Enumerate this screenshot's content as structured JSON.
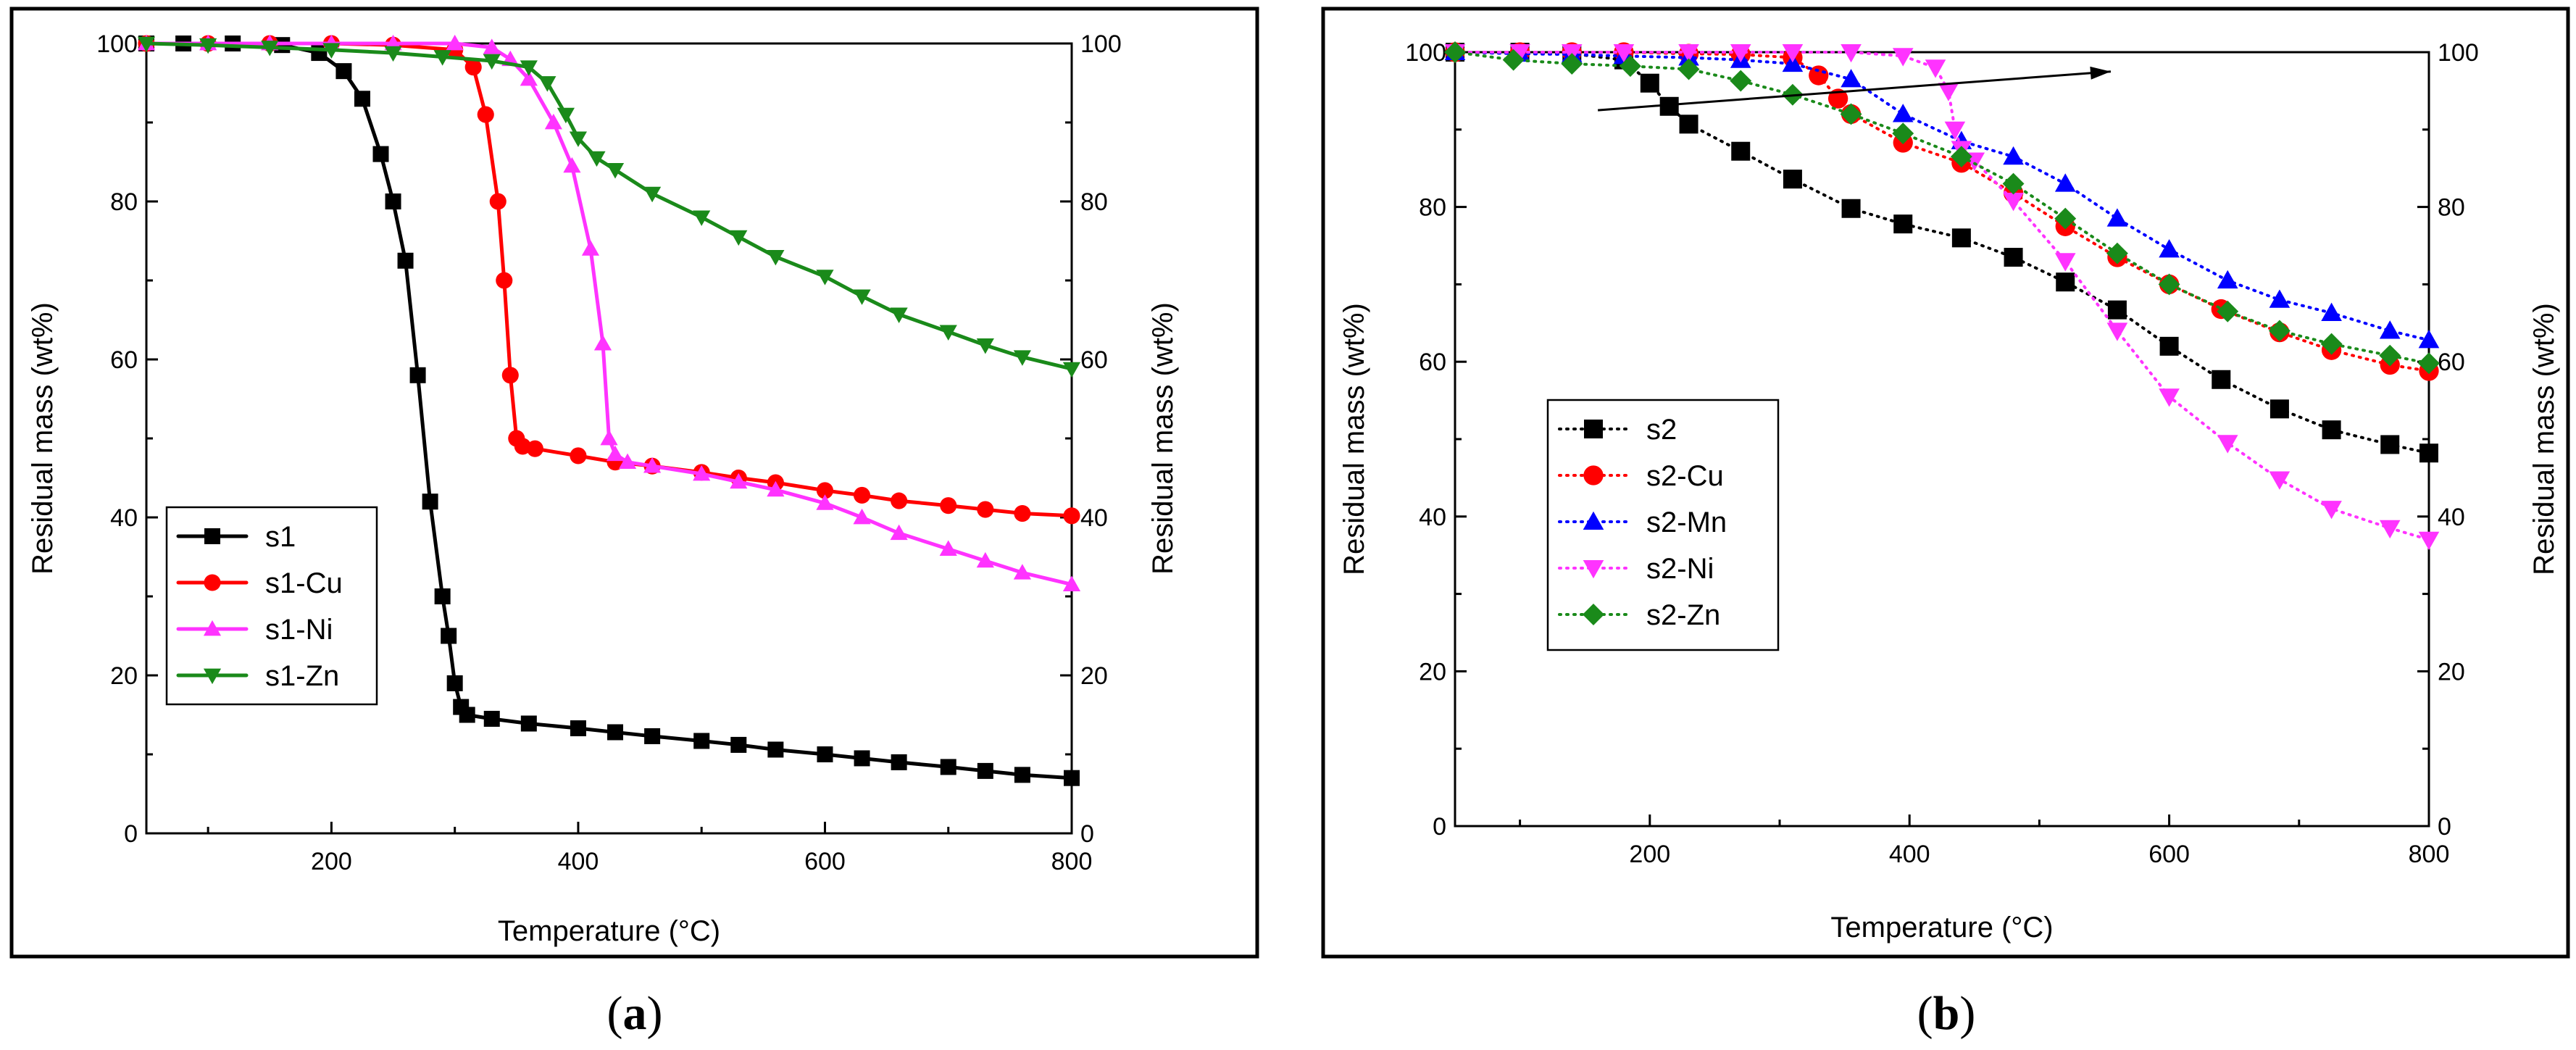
{
  "figure": {
    "panel_labels": [
      {
        "prefix": "(",
        "letter": "a",
        "suffix": ")"
      },
      {
        "prefix": "(",
        "letter": "b",
        "suffix": ")"
      }
    ]
  },
  "chart_data": [
    {
      "type": "line",
      "panel": "a",
      "title": "",
      "xlabel": "Temperature (°C)",
      "ylabel": "Residual mass (wt%)",
      "ylabel_right": "Residual mass (wt%)",
      "xlim": [
        50,
        800
      ],
      "ylim": [
        0,
        100
      ],
      "xticks": [
        200,
        400,
        600,
        800
      ],
      "yticks": [
        0,
        20,
        40,
        60,
        80,
        100
      ],
      "legend_position": "lower-left",
      "line_style": "solid",
      "series": [
        {
          "name": "s1",
          "color": "#000000",
          "marker": "square",
          "x": [
            50,
            80,
            120,
            160,
            190,
            210,
            225,
            240,
            250,
            260,
            270,
            280,
            290,
            295,
            300,
            305,
            310,
            330,
            360,
            400,
            430,
            460,
            500,
            530,
            560,
            600,
            630,
            660,
            700,
            730,
            760,
            800
          ],
          "y": [
            100,
            100,
            100,
            99.8,
            98.8,
            96.5,
            93,
            86,
            80,
            72.5,
            58,
            42,
            30,
            25,
            19,
            16,
            15,
            14.5,
            13.9,
            13.3,
            12.8,
            12.3,
            11.7,
            11.2,
            10.6,
            10,
            9.5,
            9,
            8.4,
            7.9,
            7.4,
            7
          ]
        },
        {
          "name": "s1-Cu",
          "color": "#ff0000",
          "marker": "circle",
          "x": [
            50,
            100,
            150,
            200,
            250,
            300,
            315,
            325,
            335,
            340,
            345,
            350,
            355,
            365,
            400,
            430,
            460,
            500,
            530,
            560,
            600,
            630,
            660,
            700,
            730,
            760,
            800
          ],
          "y": [
            100,
            100,
            100,
            100,
            99.8,
            99.2,
            97,
            91,
            80,
            70,
            58,
            50,
            49,
            48.7,
            47.8,
            47,
            46.5,
            45.7,
            45,
            44.4,
            43.4,
            42.8,
            42.1,
            41.5,
            41,
            40.5,
            40.2
          ]
        },
        {
          "name": "s1-Ni",
          "color": "#ff33ff",
          "marker": "triangle-up",
          "x": [
            50,
            100,
            150,
            200,
            250,
            300,
            330,
            345,
            360,
            380,
            395,
            410,
            420,
            425,
            430,
            440,
            460,
            500,
            530,
            560,
            600,
            630,
            660,
            700,
            730,
            760,
            800
          ],
          "y": [
            100,
            100,
            100,
            100,
            100,
            100,
            99.5,
            98,
            95.5,
            90,
            84.5,
            74,
            62,
            50,
            48,
            47,
            46.5,
            45.5,
            44.5,
            43.5,
            41.8,
            40,
            38,
            36,
            34.5,
            33,
            31.5
          ]
        },
        {
          "name": "s1-Zn",
          "color": "#1a8a1a",
          "marker": "triangle-down",
          "x": [
            50,
            100,
            150,
            200,
            250,
            290,
            330,
            360,
            375,
            390,
            400,
            415,
            430,
            460,
            500,
            530,
            560,
            600,
            630,
            660,
            700,
            730,
            760,
            800
          ],
          "y": [
            100,
            99.8,
            99.5,
            99.2,
            98.8,
            98.3,
            97.8,
            97,
            95,
            91,
            88,
            85.5,
            84,
            81,
            78,
            75.5,
            73,
            70.5,
            68,
            65.7,
            63.5,
            61.8,
            60.3,
            58.8
          ]
        }
      ]
    },
    {
      "type": "line",
      "panel": "b",
      "title": "",
      "xlabel": "Temperature (°C)",
      "ylabel": "Residual mass (wt%)",
      "ylabel_right": "Residual mass (wt%)",
      "xlim": [
        50,
        800
      ],
      "ylim": [
        0,
        100
      ],
      "xticks": [
        200,
        400,
        600,
        800
      ],
      "yticks": [
        0,
        20,
        40,
        60,
        80,
        100
      ],
      "legend_position": "center-left",
      "line_style": "dotted",
      "annotations": [
        {
          "type": "arrow",
          "from": [
            160,
            92.5
          ],
          "to": [
            555,
            97.5
          ]
        }
      ],
      "series": [
        {
          "name": "s2",
          "color": "#000000",
          "marker": "square",
          "x": [
            50,
            100,
            140,
            180,
            200,
            215,
            230,
            270,
            310,
            355,
            395,
            440,
            480,
            520,
            560,
            600,
            640,
            685,
            725,
            770,
            800
          ],
          "y": [
            100,
            100,
            99.8,
            99,
            96,
            93,
            90.7,
            87.2,
            83.6,
            79.8,
            77.8,
            76,
            73.5,
            70.3,
            66.7,
            62,
            57.7,
            53.9,
            51.2,
            49.3,
            48.2
          ]
        },
        {
          "name": "s2-Cu",
          "color": "#ff0000",
          "marker": "circle",
          "x": [
            50,
            100,
            140,
            180,
            230,
            270,
            310,
            330,
            345,
            355,
            395,
            440,
            480,
            520,
            560,
            600,
            640,
            685,
            725,
            770,
            800
          ],
          "y": [
            100,
            100,
            100,
            100,
            99.8,
            99.7,
            99.3,
            97,
            94,
            92,
            88.3,
            85.7,
            81.8,
            77.5,
            73.5,
            70,
            66.8,
            63.8,
            61.5,
            59.6,
            58.8
          ]
        },
        {
          "name": "s2-Mn",
          "color": "#0000ff",
          "marker": "triangle-up",
          "x": [
            50,
            100,
            140,
            180,
            230,
            270,
            310,
            355,
            395,
            440,
            480,
            520,
            560,
            600,
            645,
            685,
            725,
            770,
            800
          ],
          "y": [
            100,
            99.8,
            99.7,
            99.5,
            99.3,
            99,
            98.5,
            96.5,
            92,
            88.5,
            86.5,
            83,
            78.5,
            74.5,
            70.5,
            68,
            66.3,
            64,
            62.8
          ]
        },
        {
          "name": "s2-Ni",
          "color": "#ff33ff",
          "marker": "triangle-down",
          "x": [
            50,
            100,
            140,
            180,
            230,
            270,
            310,
            355,
            395,
            420,
            430,
            435,
            440,
            450,
            480,
            520,
            560,
            600,
            645,
            685,
            725,
            770,
            800
          ],
          "y": [
            100,
            100,
            100,
            100,
            100,
            100,
            100,
            100,
            99.5,
            98,
            95,
            90,
            87.5,
            86,
            80.8,
            73,
            64,
            55.5,
            49.5,
            44.8,
            41,
            38.5,
            37
          ]
        },
        {
          "name": "s2-Zn",
          "color": "#1a8a1a",
          "marker": "diamond",
          "x": [
            50,
            95,
            140,
            185,
            230,
            270,
            310,
            355,
            395,
            440,
            480,
            520,
            560,
            600,
            645,
            685,
            725,
            770,
            800
          ],
          "y": [
            100,
            99,
            98.5,
            98.2,
            97.8,
            96.3,
            94.5,
            92,
            89.5,
            86.5,
            83,
            78.5,
            74,
            70,
            66.5,
            64,
            62.3,
            60.8,
            59.8
          ]
        }
      ]
    }
  ]
}
